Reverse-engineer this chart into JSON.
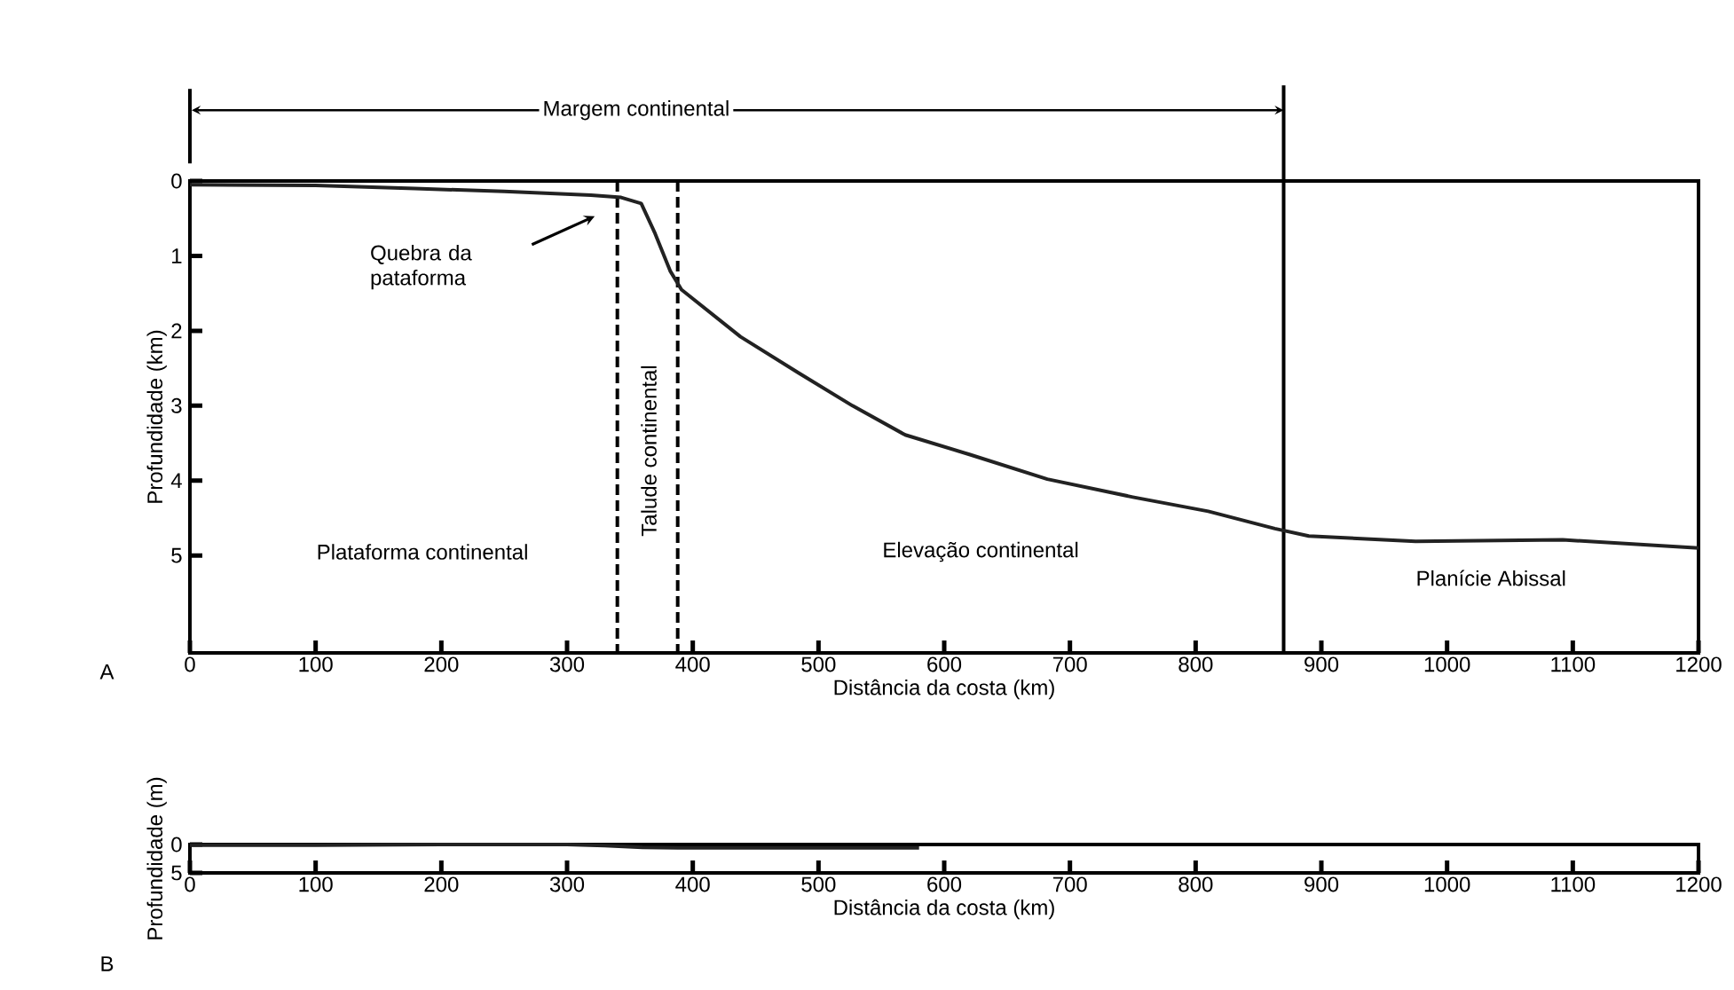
{
  "chart_data": [
    {
      "type": "line",
      "xlabel": "Distância da costa (km)",
      "ylabel": "Profundidade (km)",
      "xlim": [
        0,
        1200
      ],
      "ylim": [
        6.3,
        0
      ],
      "xticks": [
        0,
        100,
        200,
        300,
        400,
        500,
        600,
        700,
        800,
        900,
        1000,
        1100,
        1200
      ],
      "yticks": [
        0,
        1,
        2,
        3,
        4,
        5
      ],
      "marker": "none",
      "series": [
        {
          "color": "#222222",
          "x": [
            0,
            100,
            179,
            250,
            319,
            343,
            359,
            370,
            382,
            391,
            438,
            484,
            527,
            569,
            620,
            682,
            750,
            810,
            863,
            890,
            975,
            1092,
            1200
          ],
          "values": [
            0.05,
            0.06,
            0.1,
            0.14,
            0.19,
            0.22,
            0.3,
            0.7,
            1.2,
            1.45,
            2.08,
            2.56,
            3.0,
            3.39,
            3.65,
            3.98,
            4.22,
            4.41,
            4.64,
            4.74,
            4.81,
            4.79,
            4.9
          ]
        }
      ],
      "ref_lines": [
        {
          "axis": "x",
          "value": 340,
          "line_style": "dashed"
        },
        {
          "axis": "x",
          "value": 388,
          "line_style": "dashed"
        },
        {
          "axis": "x",
          "value": 870,
          "line_style": "solid"
        }
      ],
      "annotations": [
        "Margem continental",
        "Quebra da pataforma",
        "Plataforma continental",
        "Talude continental",
        "Elevação continental",
        "Planície Abissal",
        "A"
      ]
    },
    {
      "type": "line",
      "xlabel": "Distância da costa (km)",
      "ylabel": "Profundidade (m)",
      "xlim": [
        0,
        1200
      ],
      "ylim": [
        5,
        0
      ],
      "xticks": [
        0,
        100,
        200,
        300,
        400,
        500,
        600,
        700,
        800,
        900,
        1000,
        1100,
        1200
      ],
      "yticks": [
        0,
        5
      ],
      "marker": "none",
      "series": [
        {
          "color": "#222222",
          "x": [
            0,
            100,
            200,
            300,
            330,
            360,
            400,
            500,
            580
          ],
          "values": [
            0.1,
            0.1,
            0,
            0,
            0.2,
            0.5,
            0.6,
            0.6,
            0.6
          ]
        }
      ],
      "annotations": [
        "B"
      ]
    }
  ]
}
